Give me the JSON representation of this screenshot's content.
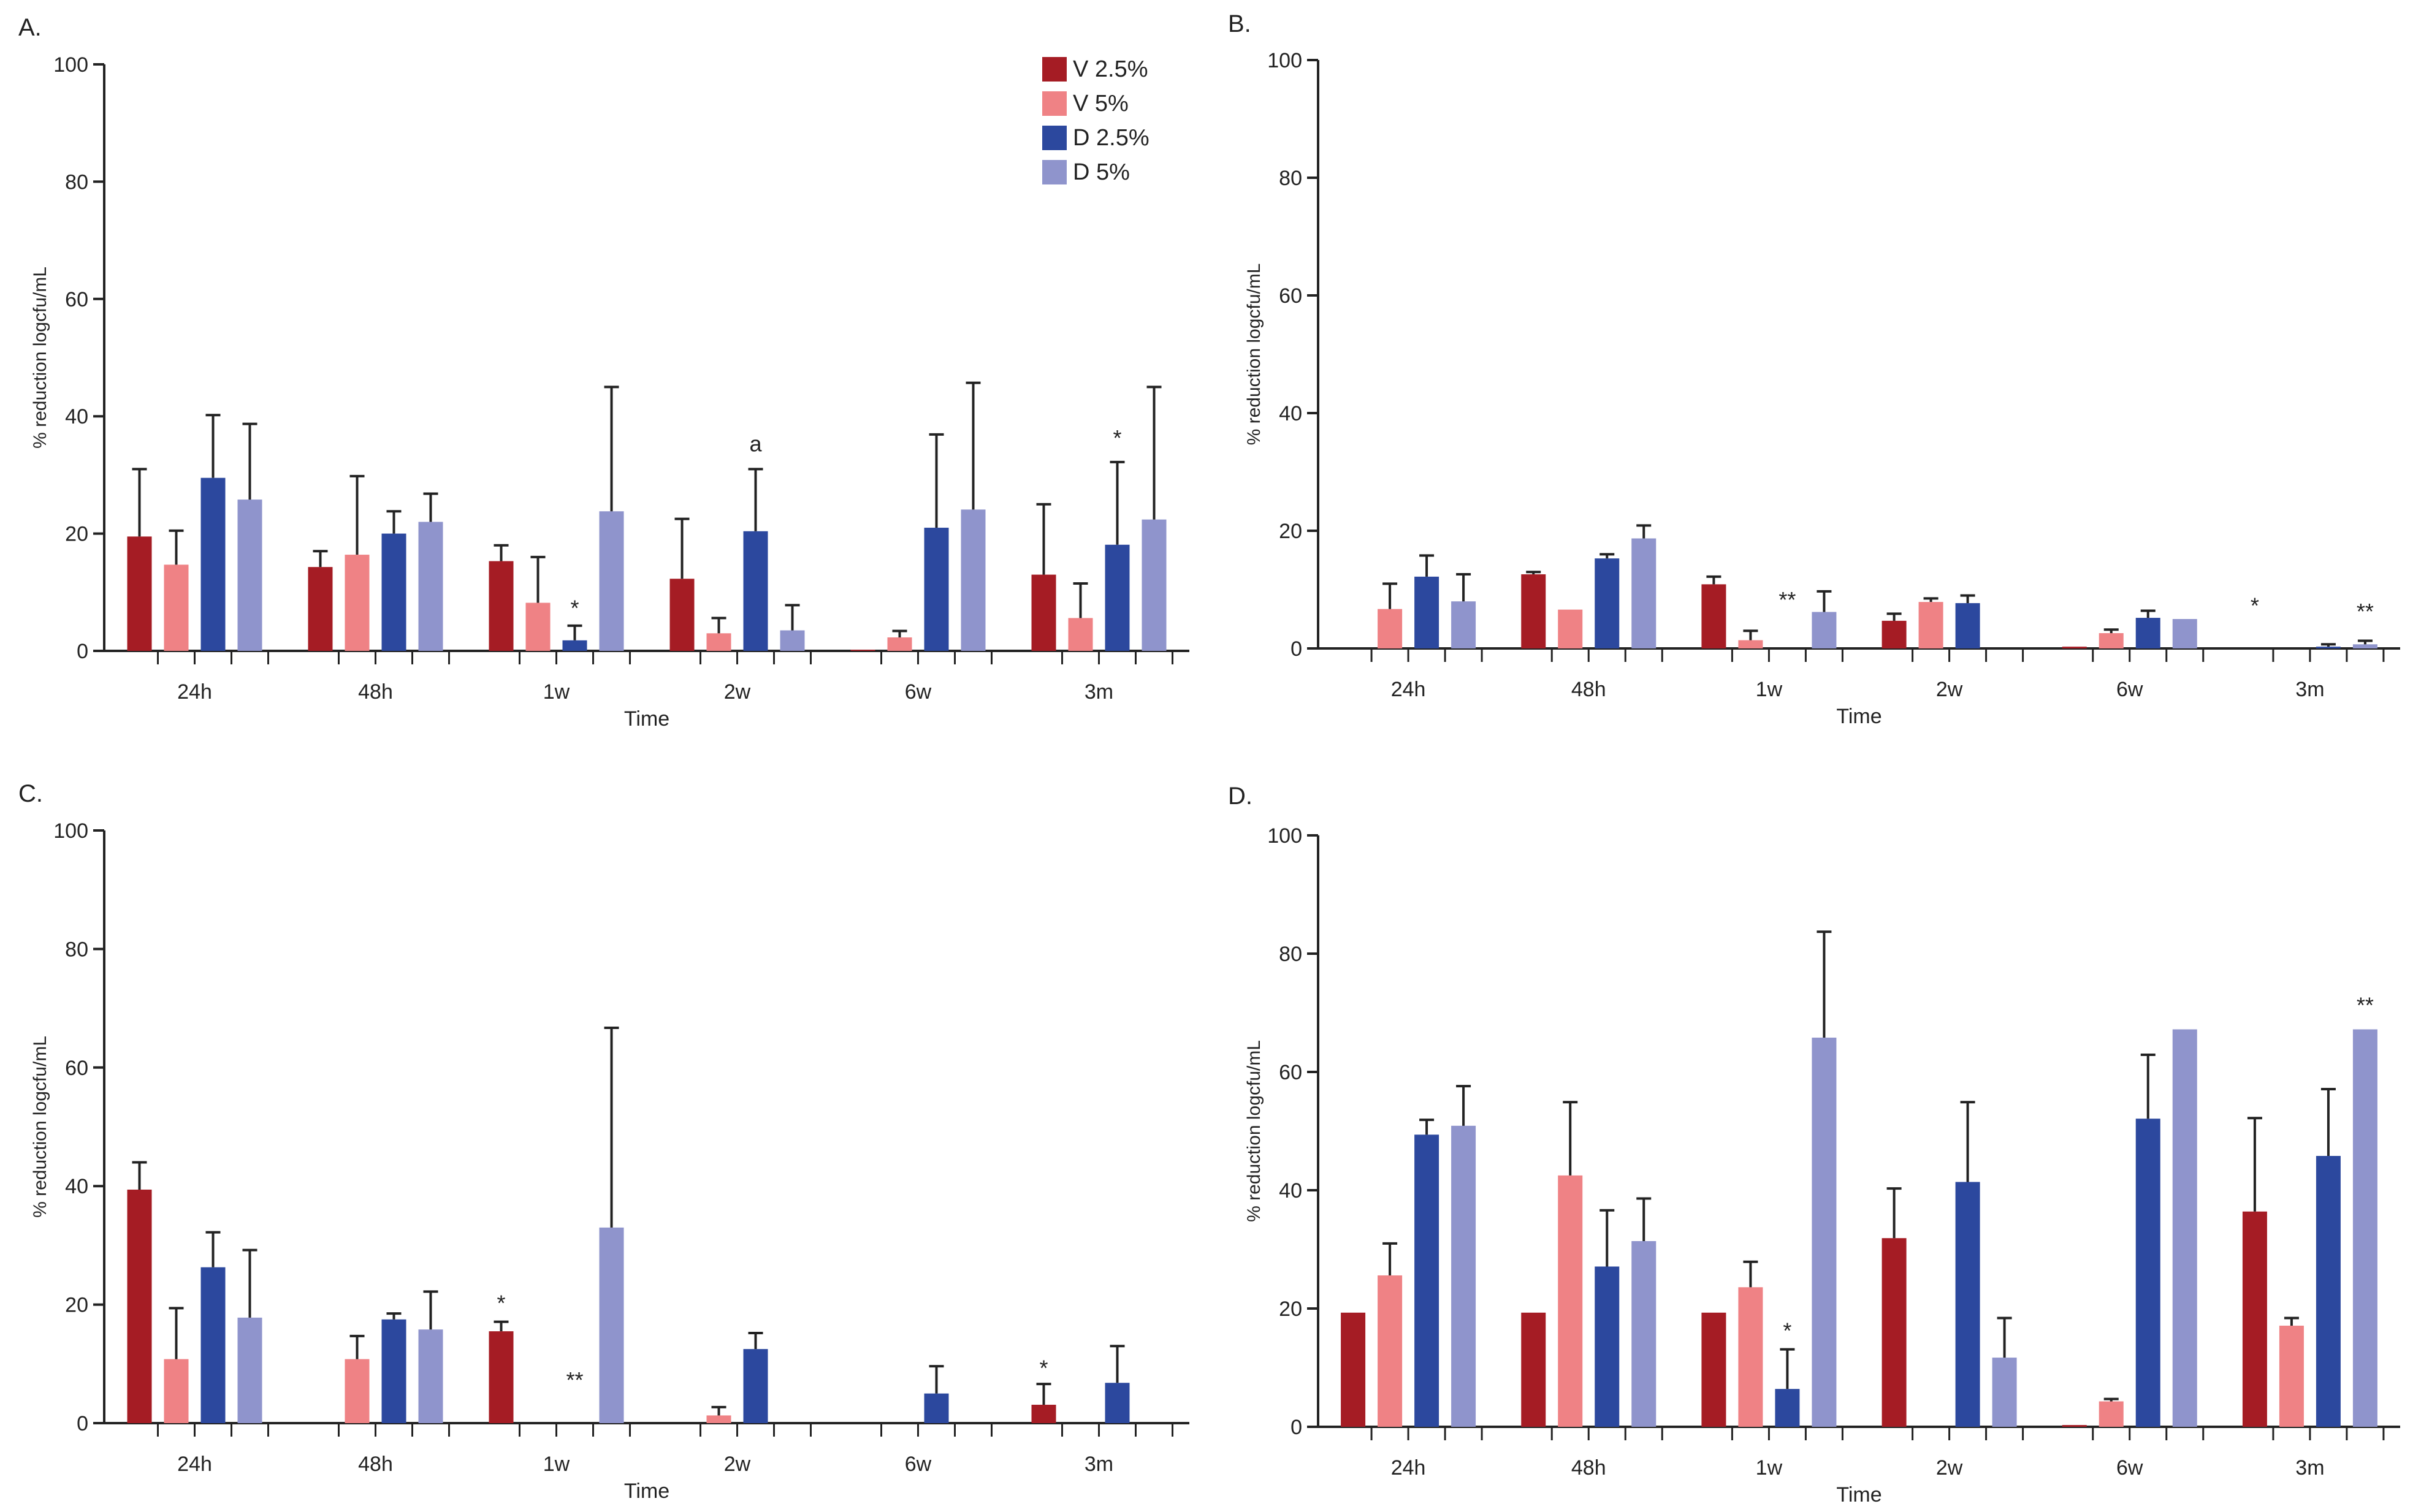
{
  "chart_data": [
    {
      "panel": "A.",
      "type": "bar",
      "ylabel": "% reduction logcfu/mL",
      "xlabel": "Time",
      "ylim": [
        0,
        100
      ],
      "yticks": [
        "0",
        "20",
        "40",
        "60",
        "80",
        "100"
      ],
      "categories": [
        "24h",
        "48h",
        "1w",
        "2w",
        "6w",
        "3m"
      ],
      "series": [
        {
          "name": "V 2.5%",
          "values": [
            19.5,
            14.3,
            15.3,
            12.3,
            0.2,
            13.0
          ],
          "errors": [
            11.5,
            2.7,
            2.7,
            10.2,
            0,
            12.0
          ]
        },
        {
          "name": "V 5%",
          "values": [
            14.7,
            16.4,
            8.2,
            3.0,
            2.3,
            5.6
          ],
          "errors": [
            5.8,
            13.4,
            7.8,
            2.6,
            1.1,
            5.9
          ]
        },
        {
          "name": "D 2.5%",
          "values": [
            29.5,
            20.0,
            1.8,
            20.4,
            21.0,
            18.1
          ],
          "errors": [
            10.7,
            3.8,
            2.5,
            10.6,
            15.9,
            14.1
          ]
        },
        {
          "name": "D 5%",
          "values": [
            25.8,
            22.0,
            23.8,
            3.5,
            24.1,
            22.4
          ],
          "errors": [
            12.9,
            4.8,
            21.2,
            4.3,
            21.6,
            22.6
          ]
        }
      ],
      "annotations": [
        {
          "text": "*",
          "category": "1w",
          "series": "D 2.5%",
          "y": 6
        },
        {
          "text": "a",
          "category": "2w",
          "series": "D 2.5%",
          "y": 34
        },
        {
          "text": "*",
          "category": "3m",
          "series": "D 2.5%",
          "y": 35
        }
      ]
    },
    {
      "panel": "B.",
      "type": "bar",
      "ylabel": "% reduction logcfu/mL",
      "xlabel": "Time",
      "ylim": [
        0,
        100
      ],
      "yticks": [
        "0",
        "20",
        "40",
        "60",
        "80",
        "100"
      ],
      "categories": [
        "24h",
        "48h",
        "1w",
        "2w",
        "6w",
        "3m"
      ],
      "series": [
        {
          "name": "V 2.5%",
          "values": [
            0,
            12.6,
            10.9,
            4.7,
            0.3,
            0
          ],
          "errors": [
            0,
            0.4,
            1.3,
            1.2,
            0,
            0
          ]
        },
        {
          "name": "V 5%",
          "values": [
            6.7,
            6.6,
            1.4,
            7.9,
            2.6,
            0
          ],
          "errors": [
            4.3,
            0,
            1.6,
            0.6,
            0.6,
            0
          ]
        },
        {
          "name": "D 2.5%",
          "values": [
            12.2,
            15.3,
            0,
            7.7,
            5.2,
            0.3
          ],
          "errors": [
            3.6,
            0.7,
            0,
            1.3,
            1.2,
            0.4
          ]
        },
        {
          "name": "D 5%",
          "values": [
            8.0,
            18.7,
            6.2,
            0,
            5.0,
            0.7
          ],
          "errors": [
            4.6,
            2.2,
            3.5,
            0,
            0,
            0.6
          ]
        }
      ],
      "annotations": [
        {
          "text": "**",
          "category": "1w",
          "series": "D 2.5%",
          "y": 7
        },
        {
          "text": "*",
          "category": "3m",
          "series": "V 2.5%",
          "y": 6
        },
        {
          "text": "**",
          "category": "3m",
          "series": "D 5%",
          "y": 5
        }
      ]
    },
    {
      "panel": "C.",
      "type": "bar",
      "ylabel": "% reduction logcfu/mL",
      "xlabel": "Time",
      "ylim": [
        0,
        100
      ],
      "yticks": [
        "0",
        "20",
        "40",
        "60",
        "80",
        "100"
      ],
      "categories": [
        "24h",
        "48h",
        "1w",
        "2w",
        "6w",
        "3m"
      ],
      "series": [
        {
          "name": "V 2.5%",
          "values": [
            39.4,
            0,
            15.5,
            0,
            0,
            3.1
          ],
          "errors": [
            4.6,
            0,
            1.6,
            0,
            0,
            3.5
          ]
        },
        {
          "name": "V 5%",
          "values": [
            10.8,
            10.8,
            0,
            1.3,
            0,
            0
          ],
          "errors": [
            8.6,
            3.9,
            0,
            1.4,
            0,
            0
          ]
        },
        {
          "name": "D 2.5%",
          "values": [
            26.3,
            17.5,
            0,
            12.5,
            5.0,
            6.8
          ],
          "errors": [
            5.9,
            1.0,
            0,
            2.7,
            4.6,
            6.2
          ]
        },
        {
          "name": "D 5%",
          "values": [
            17.8,
            15.8,
            33.0,
            0,
            0,
            0
          ],
          "errors": [
            11.4,
            6.4,
            33.7,
            0,
            0,
            0
          ]
        }
      ],
      "annotations": [
        {
          "text": "*",
          "category": "1w",
          "series": "V 2.5%",
          "y": 19
        },
        {
          "text": "**",
          "category": "1w",
          "series": "D 2.5%",
          "y": 6
        },
        {
          "text": "*",
          "category": "3m",
          "series": "V 2.5%",
          "y": 8
        }
      ]
    },
    {
      "panel": "D.",
      "type": "bar",
      "ylabel": "% reduction logcfu/mL",
      "xlabel": "Time",
      "ylim": [
        0,
        100
      ],
      "yticks": [
        "0",
        "20",
        "40",
        "60",
        "80",
        "100"
      ],
      "categories": [
        "24h",
        "48h",
        "1w",
        "2w",
        "6w",
        "3m"
      ],
      "series": [
        {
          "name": "V 2.5%",
          "values": [
            19.3,
            19.3,
            19.3,
            31.9,
            0.3,
            36.4
          ],
          "errors": [
            0,
            0,
            0,
            8.4,
            0,
            15.8
          ]
        },
        {
          "name": "V 5%",
          "values": [
            25.6,
            42.5,
            23.6,
            0,
            4.3,
            17.1
          ],
          "errors": [
            5.4,
            12.4,
            4.3,
            0,
            0.4,
            1.3
          ]
        },
        {
          "name": "D 2.5%",
          "values": [
            49.4,
            27.1,
            6.4,
            41.4,
            52.1,
            45.8
          ],
          "errors": [
            2.5,
            9.5,
            6.7,
            13.5,
            10.8,
            11.3
          ]
        },
        {
          "name": "D 5%",
          "values": [
            50.9,
            31.4,
            65.8,
            11.7,
            67.2,
            67.2
          ],
          "errors": [
            6.7,
            7.2,
            17.9,
            6.7,
            0,
            0
          ]
        }
      ],
      "annotations": [
        {
          "text": "*",
          "category": "1w",
          "series": "D 2.5%",
          "y": 15
        },
        {
          "text": "**",
          "category": "3m",
          "series": "D 5%",
          "y": 70
        }
      ]
    }
  ],
  "legend": [
    {
      "label": "V 2.5%",
      "color": "#A51C24"
    },
    {
      "label": "V 5%",
      "color": "#EF8285"
    },
    {
      "label": "D 2.5%",
      "color": "#2C489E"
    },
    {
      "label": "D 5%",
      "color": "#8F94CC"
    }
  ]
}
